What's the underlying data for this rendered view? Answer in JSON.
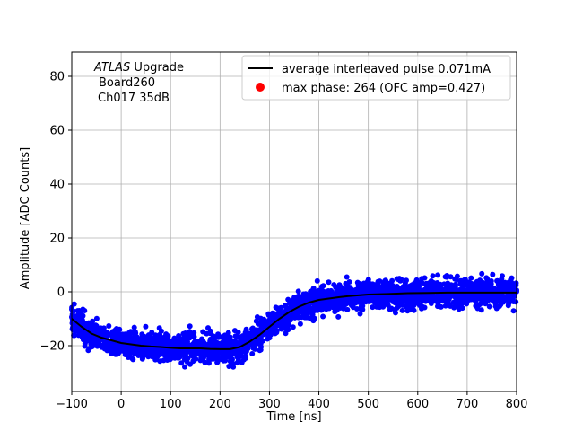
{
  "chart_data": {
    "type": "scatter",
    "title": "",
    "xlabel": "Time [ns]",
    "ylabel": "Amplitude [ADC Counts]",
    "xlim": [
      -100,
      800
    ],
    "ylim": [
      -37,
      89
    ],
    "xticks": [
      -100,
      0,
      100,
      200,
      300,
      400,
      500,
      600,
      700,
      800
    ],
    "yticks": [
      -20,
      0,
      20,
      40,
      60,
      80
    ],
    "grid": true,
    "legend_position": "top-right",
    "annotation": {
      "line1_italic": "ATLAS",
      "line1_rest": " Upgrade",
      "line2": "Board260",
      "line3": "Ch017 35dB"
    },
    "series": [
      {
        "name": "average interleaved pulse 0.071mA",
        "kind": "line",
        "color": "#000000",
        "x": [
          -100,
          -80,
          -60,
          -40,
          -20,
          0,
          20,
          40,
          60,
          80,
          100,
          120,
          140,
          160,
          180,
          200,
          220,
          240,
          260,
          280,
          300,
          320,
          340,
          360,
          380,
          400,
          420,
          440,
          460,
          480,
          500,
          540,
          580,
          620,
          660,
          700,
          740,
          800
        ],
        "y": [
          -10,
          -13,
          -15.5,
          -17,
          -18,
          -19,
          -19.5,
          -20,
          -20.3,
          -20.5,
          -20.8,
          -21,
          -21,
          -21,
          -21.2,
          -21.3,
          -21.3,
          -20.5,
          -18.5,
          -16,
          -13,
          -10,
          -7.5,
          -5.5,
          -4,
          -3,
          -2.5,
          -2,
          -1.6,
          -1.3,
          -1,
          -0.8,
          -0.5,
          -0.4,
          -0.3,
          -0.3,
          -0.3,
          -0.3
        ]
      },
      {
        "name": "samples",
        "kind": "scatter",
        "color": "#0000ff",
        "x_range": [
          -100,
          800
        ],
        "spread": 3.5
      },
      {
        "name": "max phase: 264 (OFC amp=0.427)",
        "kind": "marker",
        "color": "#ff0000",
        "x": [],
        "y": []
      }
    ]
  }
}
